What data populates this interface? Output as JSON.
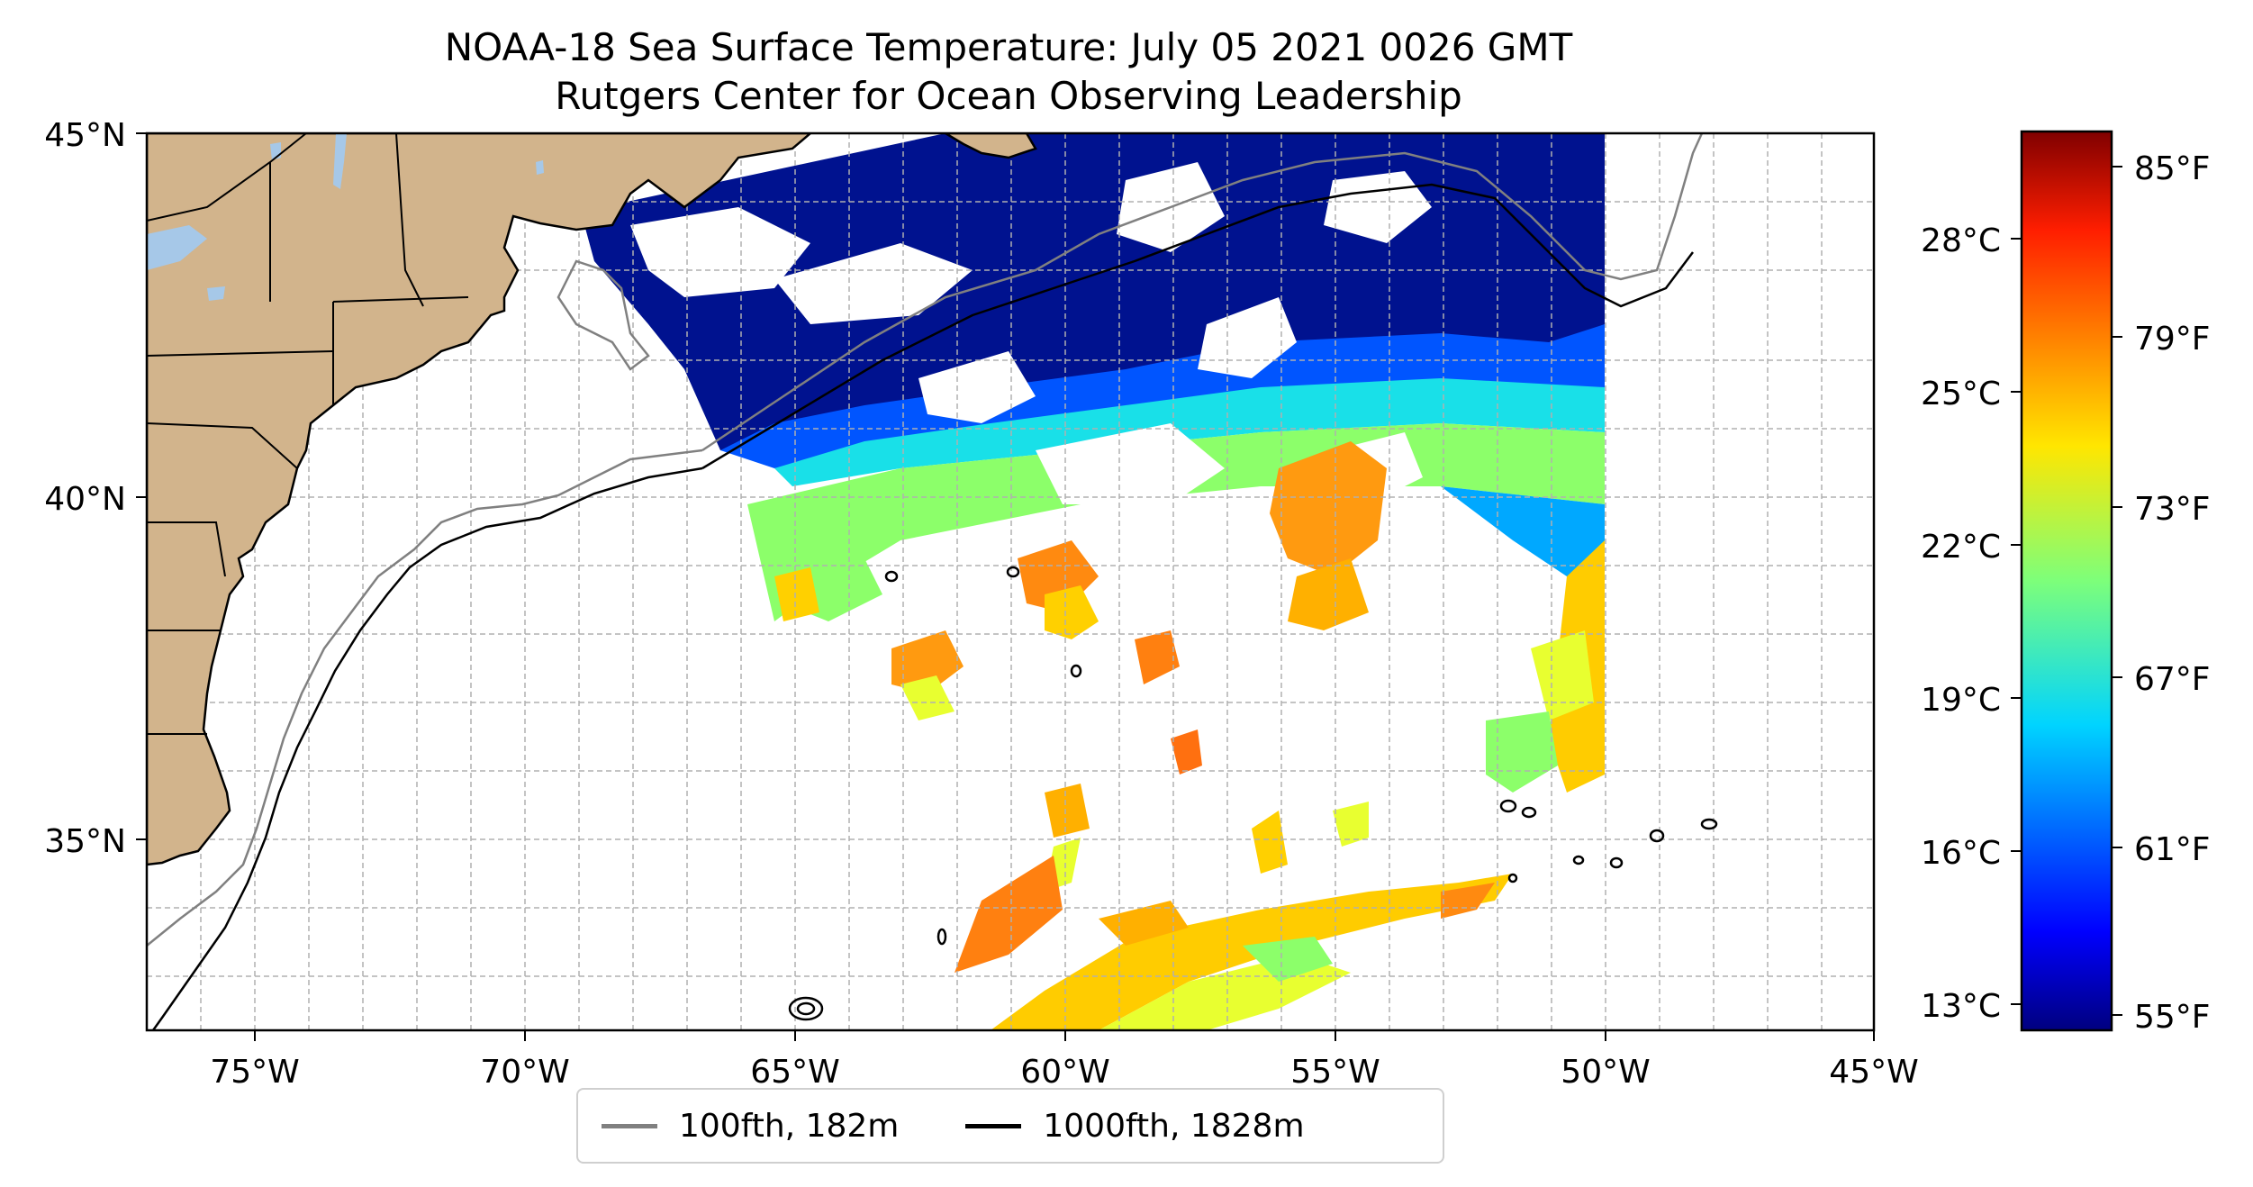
{
  "title": "NOAA-18 Sea Surface Temperature: July 05 2021 0026 GMT",
  "subtitle": "Rutgers Center for Ocean Observing Leadership",
  "map": {
    "lon_range": [
      -77,
      -45
    ],
    "lat_range": [
      32.5,
      45
    ],
    "lon_ticks": [
      "75°W",
      "70°W",
      "65°W",
      "60°W",
      "55°W",
      "50°W",
      "45°W"
    ],
    "lat_ticks": [
      "45°N",
      "40°N",
      "35°N"
    ],
    "grid": true,
    "land_color": "#d2b48c",
    "lake_color": "#a6c8e8"
  },
  "colorbar": {
    "colormap": "jet",
    "celsius_ticks": [
      "28°C",
      "25°C",
      "22°C",
      "19°C",
      "16°C",
      "13°C"
    ],
    "fahrenheit_ticks": [
      "85°F",
      "79°F",
      "73°F",
      "67°F",
      "61°F",
      "55°F"
    ]
  },
  "legend": {
    "items": [
      {
        "label": "100fth, 182m",
        "color": "#808080"
      },
      {
        "label": "1000fth, 1828m",
        "color": "#000000"
      }
    ]
  }
}
